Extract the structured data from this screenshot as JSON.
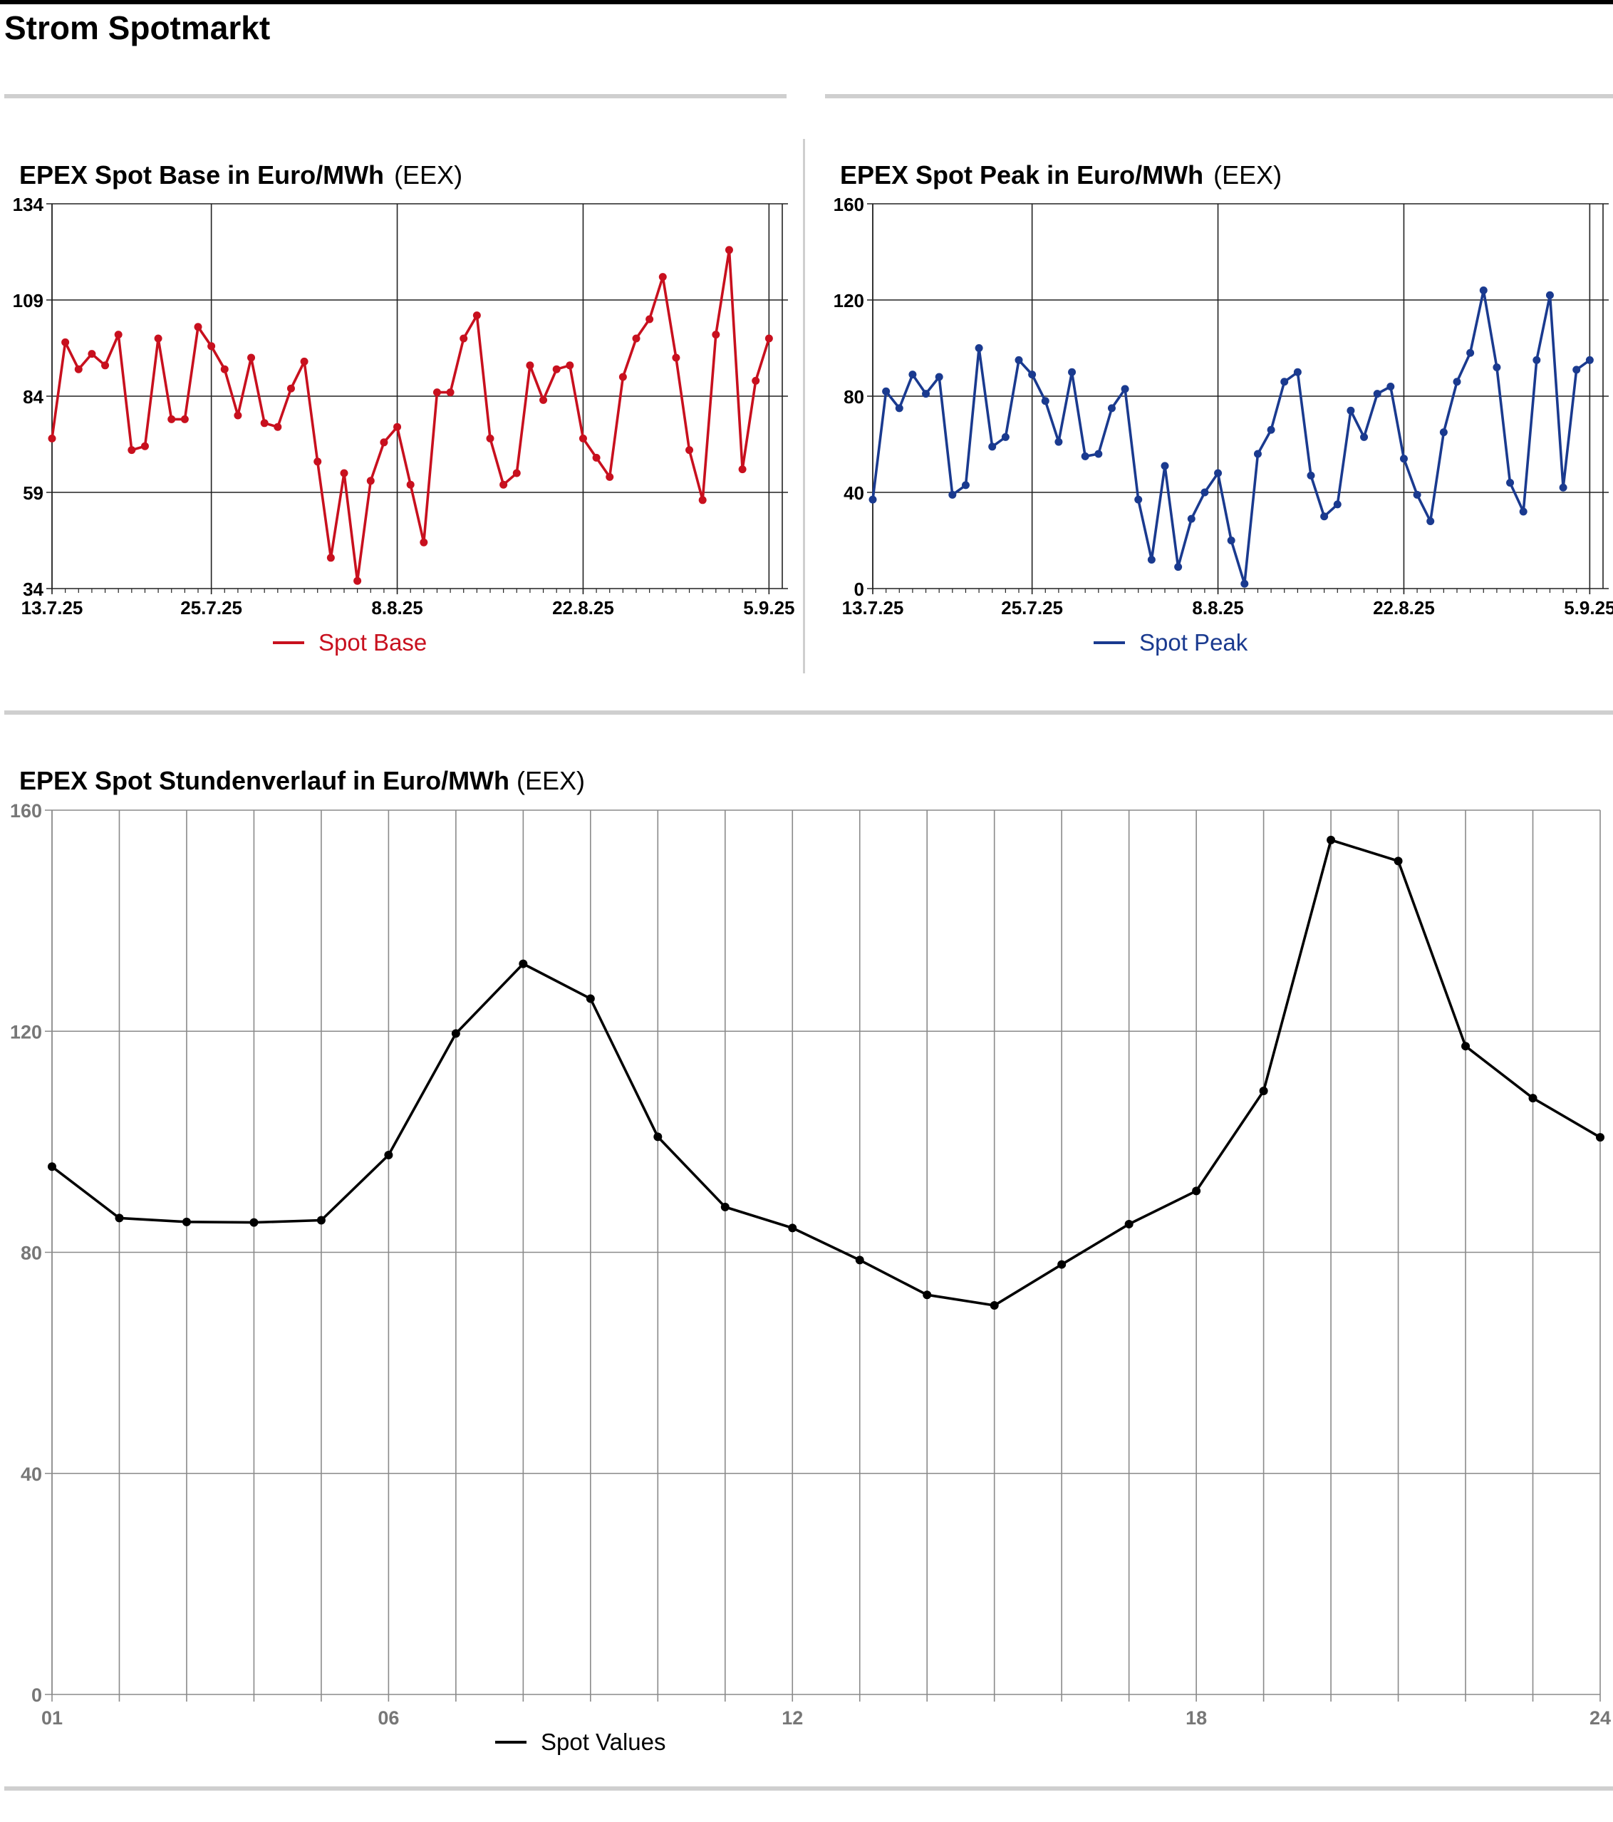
{
  "page": {
    "title": "Strom Spotmarkt"
  },
  "charts": {
    "base": {
      "title": "EPEX Spot Base in Euro/MWh",
      "source": "(EEX)",
      "legend": "Spot Base",
      "color": "#c8101e"
    },
    "peak": {
      "title": "EPEX Spot Peak in Euro/MWh",
      "source": "(EEX)",
      "legend": "Spot Peak",
      "color": "#1a3a8f"
    },
    "hourly": {
      "title": "EPEX Spot Stundenverlauf in Euro/MWh",
      "source": "(EEX)",
      "legend": "Spot Values",
      "color": "#000000"
    }
  },
  "chart_data": [
    {
      "id": "base",
      "type": "line",
      "title": "EPEX Spot Base in Euro/MWh (EEX)",
      "x_tick_labels": [
        "13.7.25",
        "25.7.25",
        "8.8.25",
        "22.8.25",
        "5.9.25"
      ],
      "x_ticks_at_day": [
        0,
        12,
        26,
        40,
        54
      ],
      "x_range_days": [
        0,
        55
      ],
      "ylim": [
        34,
        134
      ],
      "y_ticks": [
        34,
        59,
        84,
        109,
        134
      ],
      "grid": true,
      "legend_position": "bottom-center",
      "series": [
        {
          "name": "Spot Base",
          "color": "#c8101e",
          "values": [
            73,
            98,
            91,
            95,
            92,
            100,
            70,
            71,
            99,
            78,
            78,
            102,
            97,
            91,
            79,
            94,
            77,
            76,
            86,
            93,
            67,
            42,
            64,
            36,
            62,
            72,
            76,
            61,
            46,
            85,
            85,
            99,
            105,
            73,
            61,
            64,
            92,
            83,
            91,
            92,
            73,
            68,
            63,
            89,
            99,
            104,
            115,
            94,
            70,
            57,
            100,
            122,
            65,
            88,
            99
          ]
        }
      ]
    },
    {
      "id": "peak",
      "type": "line",
      "title": "EPEX Spot Peak in Euro/MWh (EEX)",
      "x_tick_labels": [
        "13.7.25",
        "25.7.25",
        "8.8.25",
        "22.8.25",
        "5.9.25"
      ],
      "x_ticks_at_day": [
        0,
        12,
        26,
        40,
        54
      ],
      "x_range_days": [
        0,
        55
      ],
      "ylim": [
        0,
        160
      ],
      "y_ticks": [
        0,
        40,
        80,
        120,
        160
      ],
      "grid": true,
      "legend_position": "bottom-center",
      "series": [
        {
          "name": "Spot Peak",
          "color": "#1a3a8f",
          "values": [
            37,
            82,
            75,
            89,
            81,
            88,
            39,
            43,
            100,
            59,
            63,
            95,
            89,
            78,
            61,
            90,
            55,
            56,
            75,
            83,
            37,
            12,
            51,
            9,
            29,
            40,
            48,
            20,
            2,
            56,
            66,
            86,
            90,
            47,
            30,
            35,
            74,
            63,
            81,
            84,
            54,
            39,
            28,
            65,
            86,
            98,
            124,
            92,
            44,
            32,
            95,
            122,
            42,
            91,
            95
          ]
        }
      ]
    },
    {
      "id": "hourly",
      "type": "line",
      "title": "EPEX Spot Stundenverlauf in Euro/MWh (EEX)",
      "x_tick_labels": [
        "01",
        "06",
        "12",
        "18",
        "24"
      ],
      "x_ticks_at_hour": [
        1,
        6,
        12,
        18,
        24
      ],
      "x_range_hours": [
        1,
        24
      ],
      "ylim": [
        0,
        160
      ],
      "y_ticks": [
        0,
        40,
        80,
        120,
        160
      ],
      "grid": true,
      "legend_position": "bottom-center",
      "series": [
        {
          "name": "Spot Values",
          "color": "#000000",
          "x": [
            1,
            2,
            3,
            4,
            5,
            6,
            7,
            8,
            9,
            10,
            11,
            12,
            13,
            14,
            15,
            16,
            17,
            18,
            19,
            20,
            21,
            22,
            23,
            24
          ],
          "values": [
            95.5,
            86.2,
            85.5,
            85.4,
            85.8,
            97.6,
            119.6,
            132.2,
            125.9,
            100.9,
            88.2,
            84.4,
            78.6,
            72.3,
            70.4,
            77.8,
            85.1,
            91.1,
            109.2,
            154.6,
            150.8,
            117.3,
            107.9,
            100.8
          ]
        }
      ]
    }
  ]
}
